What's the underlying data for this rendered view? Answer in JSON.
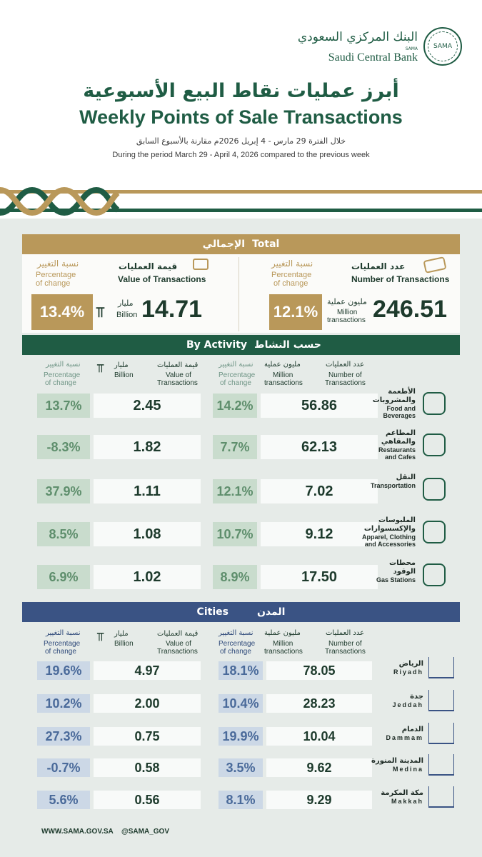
{
  "logo": {
    "seal": "SAMA",
    "ar": "البنك المركزي السعودي",
    "sama": "SAMA",
    "en": "Saudi Central Bank"
  },
  "header": {
    "title_ar": "أبرز عمليات نقاط البيع الأسبوعية",
    "title_en": "Weekly Points of Sale Transactions",
    "period_ar": "خلال الفترة 29 مارس - 4 إبريل 2026م مقارنة بالأسبوع السابق",
    "period_en": "During the period March 29 - April 4, 2026 compared to the previous week"
  },
  "total": {
    "heading_en": "Total",
    "heading_ar": "الإجمالي",
    "pct_ar": "نسبة التغيير",
    "pct_en_1": "Percentage",
    "pct_en_2": "of change",
    "value_ar": "قيمة العمليات",
    "value_en": "Value of Transactions",
    "count_ar": "عدد العمليات",
    "count_en": "Number of Transactions",
    "value_pct": "13.4%",
    "value": "14.71",
    "value_unit_ar": "مليار",
    "value_unit_en": "Billion",
    "count_pct": "12.1%",
    "count": "246.51",
    "count_unit_ar": "مليون عملية",
    "count_unit_en_1": "Million",
    "count_unit_en_2": "transactions"
  },
  "activity": {
    "heading_en": "By Activity",
    "heading_ar": "حسب النشاط",
    "cols": {
      "pct_ar": "نسبة التغيير",
      "pct_en_1": "Percentage",
      "pct_en_2": "of change",
      "bil_ar": "مليار",
      "bil_en": "Billion",
      "val_ar": "قيمة العمليات",
      "val_en_1": "Value of",
      "val_en_2": "Transactions",
      "mil_ar": "مليون عملية",
      "mil_en_1": "Million",
      "mil_en_2": "transactions",
      "num_ar": "عدد العمليات",
      "num_en_1": "Number of",
      "num_en_2": "Transactions"
    },
    "rows": [
      {
        "val_pct": "13.7%",
        "value": "2.45",
        "cnt_pct": "14.2%",
        "count": "56.86",
        "ar_1": "الأطعمة",
        "ar_2": "والمشروبات",
        "en_1": "Food and",
        "en_2": "Beverages",
        "icon": "food-icon"
      },
      {
        "val_pct": "-8.3%",
        "value": "1.82",
        "cnt_pct": "7.7%",
        "count": "62.13",
        "ar_1": "المطاعم",
        "ar_2": "والمقاهي",
        "en_1": "Restaurants",
        "en_2": "and Cafes",
        "icon": "coffee-icon"
      },
      {
        "val_pct": "37.9%",
        "value": "1.11",
        "cnt_pct": "12.1%",
        "count": "7.02",
        "ar_1": "",
        "ar_2": "النقل",
        "en_1": "",
        "en_2": "Transportation",
        "icon": "bus-icon"
      },
      {
        "val_pct": "8.5%",
        "value": "1.08",
        "cnt_pct": "10.7%",
        "count": "9.12",
        "ar_1": "الملبوسات",
        "ar_2": "والإكسسوارات",
        "en_1": "Apparel, Clothing",
        "en_2": "and Accessories",
        "icon": "shirt-icon"
      },
      {
        "val_pct": "6.9%",
        "value": "1.02",
        "cnt_pct": "8.9%",
        "count": "17.50",
        "ar_1": "محطات",
        "ar_2": "الوقود",
        "en_1": "",
        "en_2": "Gas Stations",
        "icon": "gas-pump-icon"
      }
    ]
  },
  "cities": {
    "heading_en": "Cities",
    "heading_ar": "المدن",
    "rows": [
      {
        "val_pct": "19.6%",
        "value": "4.97",
        "cnt_pct": "18.1%",
        "count": "78.05",
        "ar": "الرياض",
        "en": "Riyadh",
        "icon": "kingdom-tower-icon"
      },
      {
        "val_pct": "10.2%",
        "value": "2.00",
        "cnt_pct": "10.4%",
        "count": "28.23",
        "ar": "جدة",
        "en": "Jeddah",
        "icon": "jeddah-tower-icon"
      },
      {
        "val_pct": "27.3%",
        "value": "0.75",
        "cnt_pct": "19.9%",
        "count": "10.04",
        "ar": "الدمام",
        "en": "Dammam",
        "icon": "dammam-skyline-icon"
      },
      {
        "val_pct": "-0.7%",
        "value": "0.58",
        "cnt_pct": "3.5%",
        "count": "9.62",
        "ar": "المدينة المنورة",
        "en": "Medina",
        "icon": "medina-mosque-icon"
      },
      {
        "val_pct": "5.6%",
        "value": "0.56",
        "cnt_pct": "8.1%",
        "count": "9.29",
        "ar": "مكة المكرمة",
        "en": "Makkah",
        "icon": "makkah-mosque-icon"
      }
    ]
  },
  "footer": {
    "site": "WWW.SAMA.GOV.SA",
    "handle": "@SAMA_GOV"
  },
  "colors": {
    "green": "#1f5c44",
    "gold": "#b9985a",
    "navy": "#3a5384",
    "panel": "#e6ebe8"
  }
}
